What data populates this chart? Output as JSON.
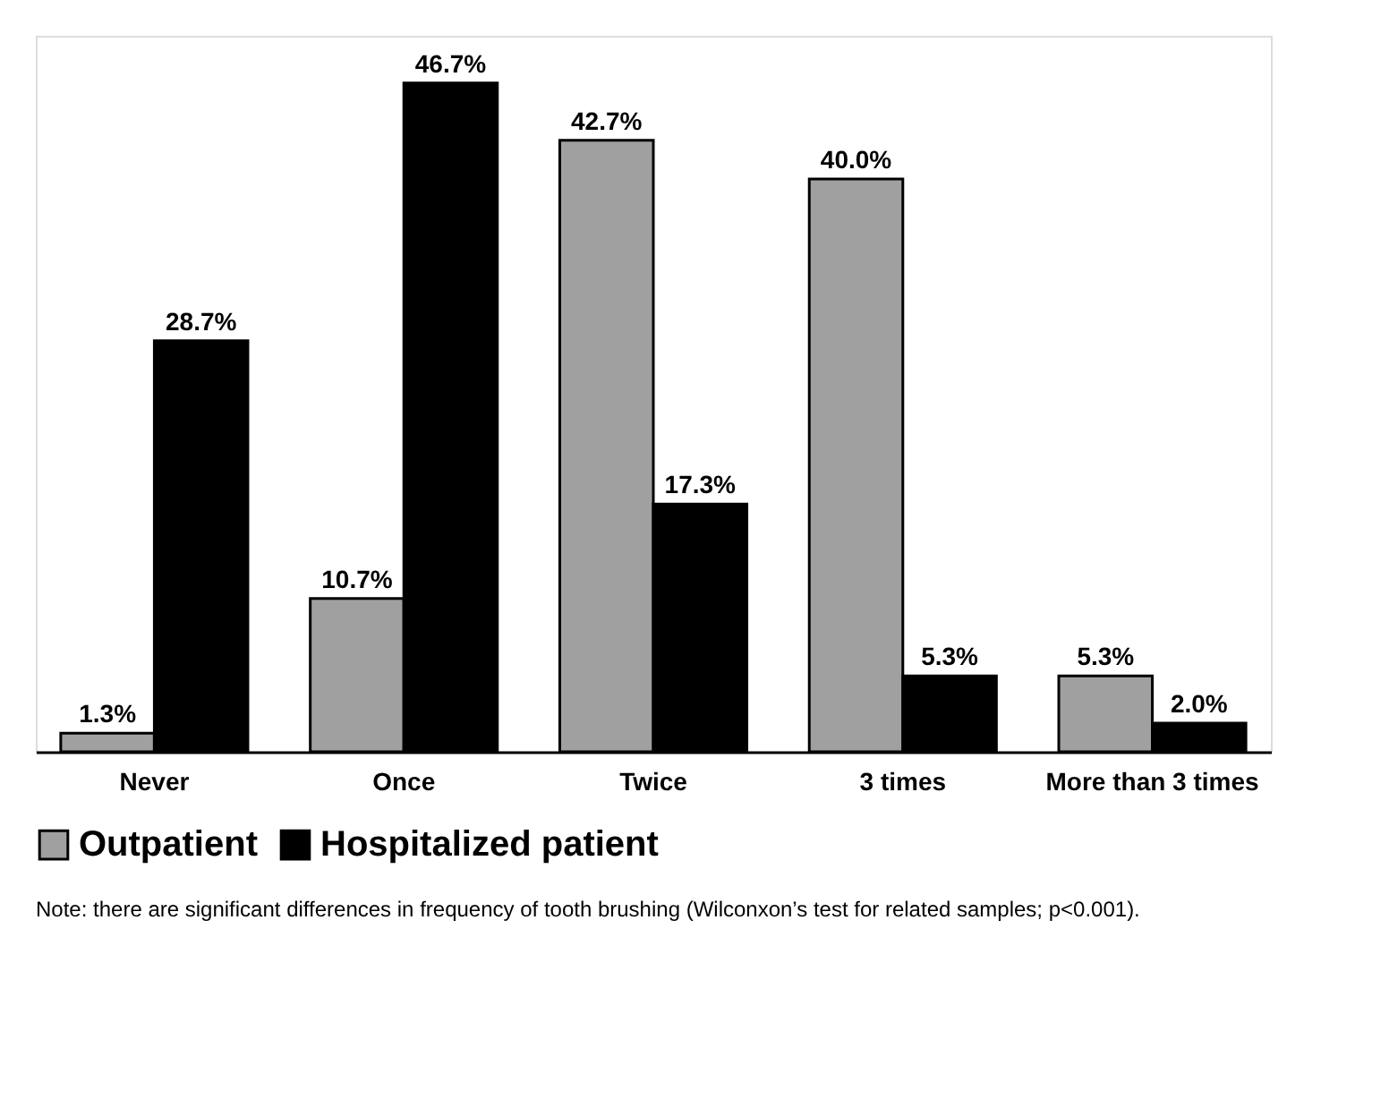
{
  "chart_data": {
    "type": "bar",
    "categories": [
      "Never",
      "Once",
      "Twice",
      "3 times",
      "More than 3 times"
    ],
    "series": [
      {
        "name": "Outpatient",
        "color": "#a0a0a0",
        "values": [
          1.3,
          10.7,
          42.7,
          40.0,
          5.3
        ],
        "value_labels": [
          "1.3%",
          "10.7%",
          "42.7%",
          "40.0%",
          "5.3%"
        ]
      },
      {
        "name": "Hospitalized patient",
        "color": "#000000",
        "values": [
          28.7,
          46.7,
          17.3,
          5.3,
          2.0
        ],
        "value_labels": [
          "28.7%",
          "46.7%",
          "17.3%",
          "5.3%",
          "2.0%"
        ]
      }
    ],
    "legend": "bottom",
    "grid": false,
    "tick_labels": "x",
    "annotations": [
      "Note: there are significant differences in frequency of tooth brushing (Wilconxon’s test for related samples; p<0.001)."
    ]
  }
}
